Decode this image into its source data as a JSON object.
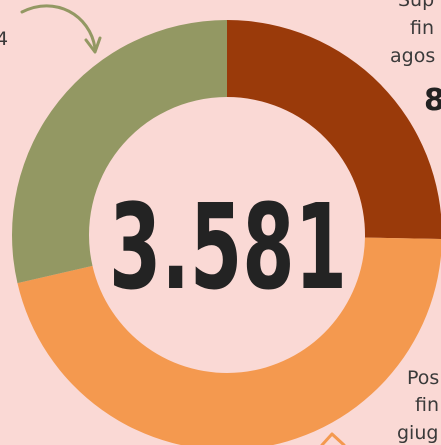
{
  "chart_data": {
    "type": "donut",
    "center_label": "3.581",
    "values": [
      906,
      1651,
      1024
    ],
    "colors": [
      "#9a3a0a",
      "#f4994f",
      "#939863"
    ],
    "annotations": [
      {
        "lines": [
          "Sup",
          "fin",
          "agos"
        ],
        "value_text": "8"
      },
      {
        "lines": [
          "Pos",
          "fin",
          "giug"
        ]
      },
      {
        "lines": [
          "4"
        ]
      }
    ]
  }
}
